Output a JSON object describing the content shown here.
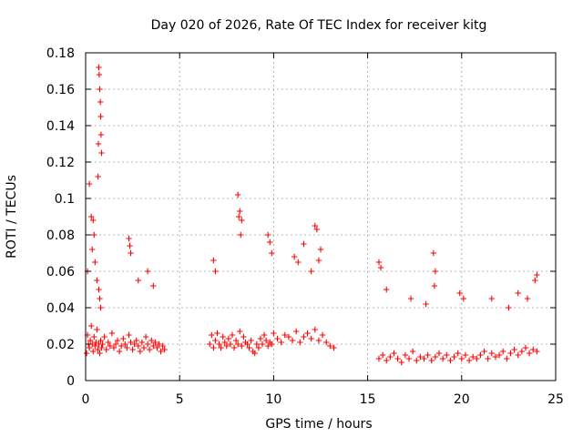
{
  "chart_data": {
    "type": "scatter",
    "title": "Day 020 of 2026, Rate Of TEC Index for receiver kitg",
    "xlabel": "GPS time / hours",
    "ylabel": "ROTI / TECUs",
    "xlim": [
      0,
      25
    ],
    "ylim": [
      0,
      0.18
    ],
    "xticks": [
      "0",
      "5",
      "10",
      "15",
      "20",
      "25"
    ],
    "yticks": [
      "0",
      "0.02",
      "0.04",
      "0.06",
      "0.08",
      "0.1",
      "0.12",
      "0.14",
      "0.16",
      "0.18"
    ],
    "grid": true,
    "marker": "+",
    "color": "#ff0000",
    "series": [
      {
        "name": "ROTI",
        "x": [
          0.05,
          0.1,
          0.15,
          0.2,
          0.25,
          0.3,
          0.35,
          0.4,
          0.45,
          0.5,
          0.55,
          0.6,
          0.65,
          0.7,
          0.75,
          0.8,
          0.85,
          0.9,
          1.0,
          1.1,
          1.2,
          1.3,
          1.4,
          1.5,
          1.6,
          1.7,
          1.8,
          1.9,
          2.0,
          2.1,
          2.2,
          2.3,
          2.4,
          2.5,
          2.6,
          2.7,
          2.8,
          2.9,
          3.0,
          3.1,
          3.2,
          3.3,
          3.4,
          3.5,
          3.6,
          3.7,
          3.8,
          3.9,
          4.0,
          4.1,
          4.2,
          0.1,
          0.2,
          0.3,
          0.35,
          0.4,
          0.45,
          0.5,
          0.6,
          0.7,
          0.75,
          0.8,
          2.3,
          2.35,
          2.4,
          2.8,
          3.3,
          3.6,
          0.7,
          0.72,
          0.75,
          0.78,
          0.8,
          0.82,
          0.68,
          0.66,
          0.85,
          6.6,
          6.7,
          6.8,
          6.9,
          7.0,
          7.1,
          7.2,
          7.3,
          7.4,
          7.5,
          7.6,
          7.7,
          7.8,
          7.9,
          8.0,
          8.1,
          8.2,
          8.3,
          8.4,
          8.5,
          8.6,
          8.7,
          8.8,
          8.9,
          9.0,
          9.1,
          9.2,
          9.3,
          9.4,
          9.5,
          9.6,
          9.7,
          9.8,
          9.9,
          10.0,
          10.2,
          10.4,
          10.6,
          10.8,
          11.0,
          11.2,
          11.4,
          11.6,
          11.8,
          12.0,
          12.2,
          12.4,
          12.6,
          12.8,
          13.0,
          13.2,
          6.8,
          6.9,
          8.1,
          8.2,
          8.3,
          8.15,
          8.25,
          9.7,
          9.8,
          9.9,
          11.1,
          11.3,
          11.6,
          12.0,
          12.2,
          12.3,
          12.5,
          12.4,
          15.6,
          15.8,
          16.0,
          16.2,
          16.4,
          16.6,
          16.8,
          17.0,
          17.2,
          17.4,
          17.6,
          17.8,
          18.0,
          18.2,
          18.4,
          18.6,
          18.8,
          19.0,
          19.2,
          19.4,
          19.6,
          19.8,
          20.0,
          20.2,
          20.4,
          20.6,
          20.8,
          21.0,
          21.2,
          21.4,
          21.6,
          21.8,
          22.0,
          22.2,
          22.4,
          22.6,
          22.8,
          23.0,
          23.2,
          23.4,
          23.6,
          23.8,
          24.0,
          15.6,
          15.7,
          16.0,
          17.3,
          18.1,
          18.5,
          18.6,
          18.55,
          19.9,
          20.1,
          21.6,
          22.5,
          23.0,
          23.5,
          23.9,
          24.0
        ],
        "y": [
          0.015,
          0.025,
          0.02,
          0.018,
          0.022,
          0.03,
          0.02,
          0.016,
          0.024,
          0.019,
          0.021,
          0.028,
          0.017,
          0.02,
          0.015,
          0.022,
          0.018,
          0.02,
          0.024,
          0.017,
          0.021,
          0.019,
          0.026,
          0.018,
          0.02,
          0.022,
          0.016,
          0.019,
          0.023,
          0.02,
          0.018,
          0.025,
          0.021,
          0.017,
          0.02,
          0.022,
          0.019,
          0.016,
          0.021,
          0.018,
          0.024,
          0.02,
          0.017,
          0.022,
          0.019,
          0.021,
          0.018,
          0.02,
          0.016,
          0.019,
          0.017,
          0.06,
          0.108,
          0.09,
          0.072,
          0.088,
          0.08,
          0.065,
          0.055,
          0.05,
          0.045,
          0.04,
          0.078,
          0.074,
          0.07,
          0.055,
          0.06,
          0.052,
          0.172,
          0.168,
          0.16,
          0.153,
          0.145,
          0.135,
          0.13,
          0.112,
          0.125,
          0.02,
          0.025,
          0.018,
          0.022,
          0.026,
          0.02,
          0.018,
          0.024,
          0.021,
          0.019,
          0.023,
          0.02,
          0.025,
          0.018,
          0.022,
          0.02,
          0.027,
          0.019,
          0.024,
          0.021,
          0.02,
          0.018,
          0.022,
          0.016,
          0.015,
          0.02,
          0.018,
          0.023,
          0.02,
          0.025,
          0.022,
          0.019,
          0.021,
          0.02,
          0.026,
          0.023,
          0.021,
          0.025,
          0.024,
          0.022,
          0.027,
          0.021,
          0.024,
          0.026,
          0.023,
          0.028,
          0.022,
          0.025,
          0.021,
          0.019,
          0.018,
          0.066,
          0.06,
          0.102,
          0.093,
          0.088,
          0.09,
          0.08,
          0.08,
          0.076,
          0.07,
          0.068,
          0.065,
          0.075,
          0.06,
          0.085,
          0.083,
          0.072,
          0.066,
          0.012,
          0.014,
          0.011,
          0.013,
          0.015,
          0.012,
          0.01,
          0.014,
          0.012,
          0.016,
          0.011,
          0.013,
          0.012,
          0.014,
          0.011,
          0.013,
          0.015,
          0.012,
          0.014,
          0.011,
          0.013,
          0.015,
          0.012,
          0.014,
          0.011,
          0.013,
          0.012,
          0.014,
          0.016,
          0.012,
          0.015,
          0.013,
          0.014,
          0.016,
          0.012,
          0.015,
          0.017,
          0.014,
          0.016,
          0.018,
          0.015,
          0.017,
          0.016,
          0.065,
          0.062,
          0.05,
          0.045,
          0.042,
          0.07,
          0.06,
          0.052,
          0.048,
          0.045,
          0.045,
          0.04,
          0.048,
          0.045,
          0.055,
          0.058
        ]
      }
    ]
  }
}
